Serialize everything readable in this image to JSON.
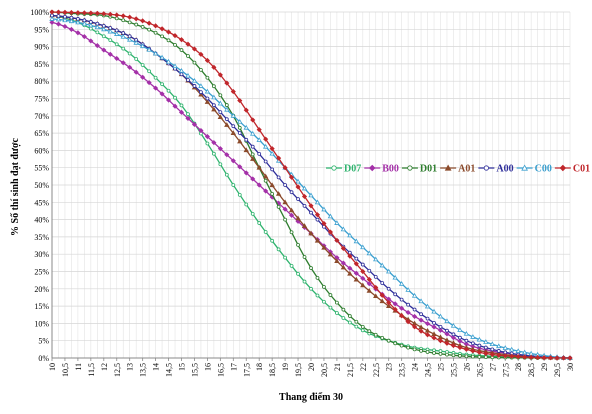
{
  "chart_data": {
    "type": "line",
    "xlabel": "Thang điểm 30",
    "ylabel": "% Số thí sinh đạt được",
    "x_ticks": [
      "10",
      "10,5",
      "11",
      "11,5",
      "12",
      "12,5",
      "13",
      "13,5",
      "14",
      "14,5",
      "15",
      "15,5",
      "16",
      "16,5",
      "17",
      "17,5",
      "18",
      "18,5",
      "19",
      "19,5",
      "20",
      "20,5",
      "21",
      "21,5",
      "22",
      "22,5",
      "23",
      "23,5",
      "24",
      "24,5",
      "25",
      "25,5",
      "26",
      "26,5",
      "27",
      "27,5",
      "28",
      "28,5",
      "29",
      "29,5",
      "30"
    ],
    "y_ticks": [
      "0%",
      "5%",
      "10%",
      "15%",
      "20%",
      "25%",
      "30%",
      "35%",
      "40%",
      "45%",
      "50%",
      "55%",
      "60%",
      "65%",
      "70%",
      "75%",
      "80%",
      "85%",
      "90%",
      "95%",
      "100%"
    ],
    "xlim": [
      10,
      30
    ],
    "ylim": [
      0,
      100
    ],
    "grid": true,
    "legend_position": "right-middle",
    "series": [
      {
        "name": "D07",
        "color": "#2fb36e",
        "marker": "circle-open",
        "x": [
          10,
          11,
          12,
          13,
          14,
          15,
          16,
          17,
          18,
          19,
          20,
          21,
          22,
          23,
          24,
          25,
          26,
          27,
          28,
          29,
          30
        ],
        "y": [
          99,
          97,
          93,
          88,
          81,
          73,
          62,
          50,
          39,
          29,
          20,
          13,
          8,
          5,
          3,
          2,
          1,
          0.5,
          0.2,
          0.1,
          0
        ]
      },
      {
        "name": "B00",
        "color": "#a431a8",
        "marker": "diamond",
        "x": [
          10,
          11,
          12,
          13,
          14,
          15,
          16,
          17,
          18,
          19,
          20,
          21,
          22,
          23,
          24,
          25,
          26,
          27,
          28,
          29,
          30
        ],
        "y": [
          97,
          94,
          89,
          84,
          78,
          71,
          64,
          57,
          50,
          43,
          36,
          29,
          23,
          17,
          12,
          8,
          4,
          2,
          1,
          0.3,
          0
        ]
      },
      {
        "name": "D01",
        "color": "#2e7d2e",
        "marker": "circle-open",
        "x": [
          10,
          11,
          12,
          13,
          14,
          15,
          16,
          17,
          18,
          19,
          20,
          21,
          22,
          23,
          24,
          25,
          26,
          27,
          28,
          29,
          30
        ],
        "y": [
          100,
          99.5,
          99,
          97,
          94,
          89,
          81,
          70,
          55,
          40,
          26,
          16,
          9,
          5,
          2.5,
          1.2,
          0.5,
          0.2,
          0.1,
          0,
          0
        ]
      },
      {
        "name": "A01",
        "color": "#8b4a2b",
        "marker": "triangle",
        "x": [
          10,
          11,
          12,
          13,
          14,
          15,
          16,
          17,
          18,
          19,
          20,
          21,
          22,
          23,
          24,
          25,
          26,
          27,
          28,
          29,
          30
        ],
        "y": [
          99,
          98,
          96,
          93,
          88,
          82,
          74,
          65,
          55,
          45,
          36,
          28,
          21,
          15,
          10,
          6,
          3,
          1.5,
          0.6,
          0.2,
          0
        ]
      },
      {
        "name": "A00",
        "color": "#2e2e9a",
        "marker": "circle-open",
        "x": [
          10,
          11,
          12,
          13,
          14,
          15,
          16,
          17,
          18,
          19,
          20,
          21,
          22,
          23,
          24,
          25,
          26,
          27,
          28,
          29,
          30
        ],
        "y": [
          99,
          98,
          96,
          93,
          88,
          82,
          75,
          67,
          59,
          50,
          42,
          34,
          27,
          20,
          14,
          9,
          5,
          2.5,
          1,
          0.3,
          0
        ]
      },
      {
        "name": "C00",
        "color": "#3a9fcf",
        "marker": "triangle-open",
        "x": [
          10,
          11,
          12,
          13,
          14,
          15,
          16,
          17,
          18,
          19,
          20,
          21,
          22,
          23,
          24,
          25,
          26,
          27,
          28,
          29,
          30
        ],
        "y": [
          98,
          97,
          95,
          92,
          88,
          83,
          77,
          70,
          63,
          55,
          47,
          39,
          32,
          25,
          18,
          12,
          7,
          4,
          2,
          0.7,
          0
        ]
      },
      {
        "name": "C01",
        "color": "#c0262b",
        "marker": "diamond",
        "x": [
          10,
          11,
          12,
          13,
          14,
          15,
          16,
          17,
          18,
          19,
          20,
          21,
          22,
          23,
          24,
          25,
          26,
          27,
          28,
          29,
          30
        ],
        "y": [
          100,
          99.8,
          99.5,
          98.5,
          96,
          92,
          86,
          77,
          66,
          55,
          44,
          34,
          25,
          16,
          9,
          5,
          2.5,
          1,
          0.4,
          0.1,
          0
        ]
      }
    ]
  }
}
